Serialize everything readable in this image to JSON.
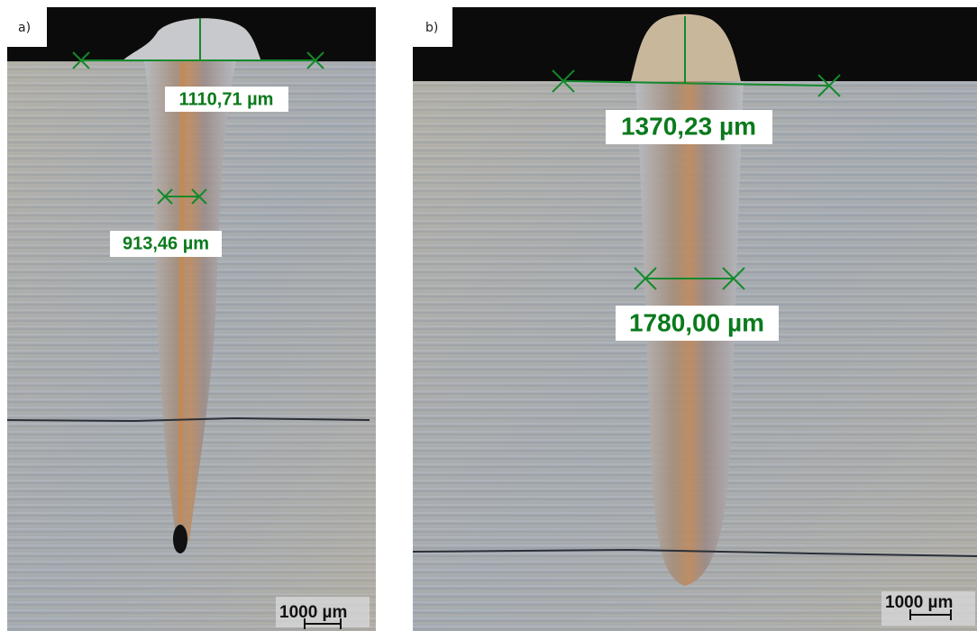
{
  "panels": [
    {
      "label": "a)",
      "measurements": [
        "1110,71 µm",
        "913,46 µm"
      ],
      "scale_bar": "1000 µm"
    },
    {
      "label": "b)",
      "measurements": [
        "1370,23 µm",
        "1780,00 µm"
      ],
      "scale_bar": "1000 µm"
    }
  ]
}
